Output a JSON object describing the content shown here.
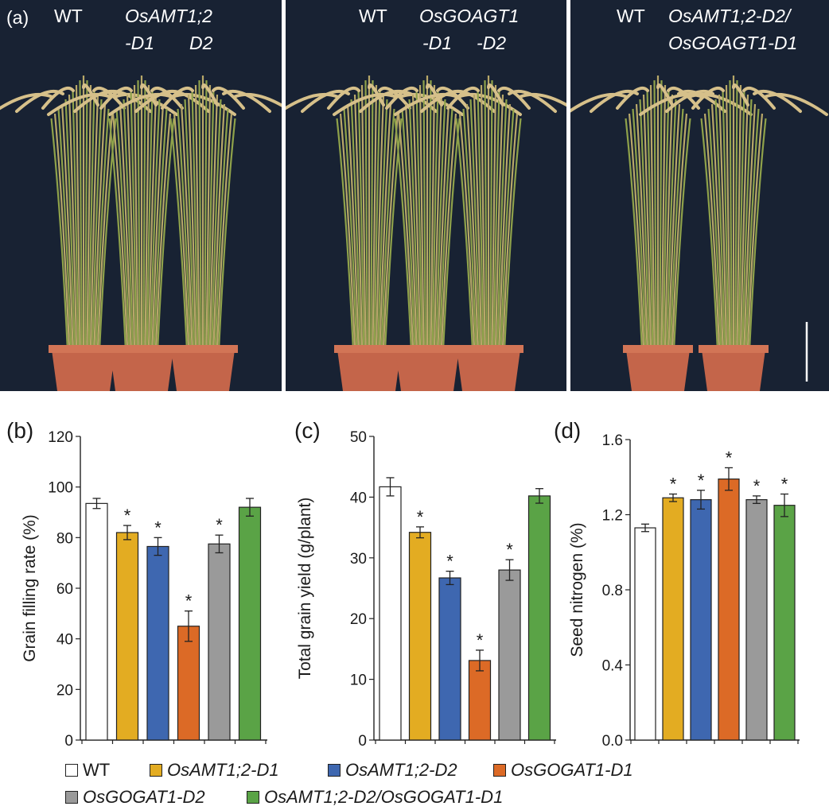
{
  "figure": {
    "panel_a_label": "(a)",
    "photos": [
      {
        "lines": [
          {
            "text": "WT",
            "italic": false
          },
          {
            "text": "OsAMT1;2",
            "italic": true
          },
          {
            "text": "-D1",
            "italic": true
          },
          {
            "text": "D2",
            "italic": true
          }
        ]
      },
      {
        "lines": [
          {
            "text": "WT",
            "italic": false
          },
          {
            "text": "OsGOAGT1",
            "italic": true
          },
          {
            "text": "-D1",
            "italic": true
          },
          {
            "text": "-D2",
            "italic": true
          }
        ]
      },
      {
        "lines": [
          {
            "text": "WT",
            "italic": false
          },
          {
            "text": "OsAMT1;2-D2/",
            "italic": true
          },
          {
            "text": "OsGOAGT1-D1",
            "italic": true
          }
        ]
      }
    ],
    "colors": {
      "photo_bg": "#182233",
      "pot": "#c4654a",
      "straw": "#b8a869",
      "leaf": "#8fa24a"
    }
  },
  "chart_data": [
    {
      "type": "bar",
      "panel_label": "(b)",
      "ylabel": "Grain filling rate (%)",
      "ylim": [
        0,
        120
      ],
      "yticks": [
        0,
        20,
        40,
        60,
        80,
        100,
        120
      ],
      "ytick_labels": [
        "0",
        "20",
        "40",
        "60",
        "80",
        "100",
        "120"
      ],
      "categories": [
        "WT",
        "OsAMT1;2-D1",
        "OsAMT1;2-D2",
        "OsGOGAT1-D1",
        "OsGOGAT1-D2",
        "OsAMT1;2-D2/OsGOGAT1-D1"
      ],
      "values": [
        93.5,
        82,
        76.5,
        45,
        77.5,
        92
      ],
      "errors": [
        2,
        2.8,
        3.5,
        6,
        3.5,
        3.5
      ],
      "significance": [
        "",
        "*",
        "*",
        "*",
        "*",
        ""
      ]
    },
    {
      "type": "bar",
      "panel_label": "(c)",
      "ylabel": "Total grain yield (g/plant)",
      "ylim": [
        0,
        50
      ],
      "yticks": [
        0,
        10,
        20,
        30,
        40,
        50
      ],
      "ytick_labels": [
        "0",
        "10",
        "20",
        "30",
        "40",
        "50"
      ],
      "categories": [
        "WT",
        "OsAMT1;2-D1",
        "OsAMT1;2-D2",
        "OsGOGAT1-D1",
        "OsGOGAT1-D2",
        "OsAMT1;2-D2/OsGOGAT1-D1"
      ],
      "values": [
        41.7,
        34.2,
        26.7,
        13.1,
        28,
        40.2
      ],
      "errors": [
        1.5,
        0.9,
        1.1,
        1.7,
        1.7,
        1.2
      ],
      "significance": [
        "",
        "*",
        "*",
        "*",
        "*",
        ""
      ]
    },
    {
      "type": "bar",
      "panel_label": "(d)",
      "ylabel": "Seed nitrogen (%)",
      "ylim": [
        0,
        1.6
      ],
      "yticks": [
        0,
        0.4,
        0.8,
        1.2,
        1.6
      ],
      "ytick_labels": [
        "0.0",
        "0.4",
        "0.8",
        "1.2",
        "1.6"
      ],
      "categories": [
        "WT",
        "OsAMT1;2-D1",
        "OsAMT1;2-D2",
        "OsGOGAT1-D1",
        "OsGOGAT1-D2",
        "OsAMT1;2-D2/OsGOGAT1-D1"
      ],
      "values": [
        1.13,
        1.29,
        1.28,
        1.39,
        1.28,
        1.25
      ],
      "errors": [
        0.02,
        0.02,
        0.05,
        0.06,
        0.02,
        0.06
      ],
      "significance": [
        "",
        "*",
        "*",
        "*",
        "*",
        "*"
      ]
    }
  ],
  "series_colors": [
    "#ffffff",
    "#e3ac22",
    "#3e67b0",
    "#dc6a26",
    "#9a9a9a",
    "#5aa346"
  ],
  "legend": {
    "items": [
      {
        "label": "WT",
        "color": "#ffffff"
      },
      {
        "label": "OsAMT1;2-D1",
        "color": "#e3ac22"
      },
      {
        "label": "OsAMT1;2-D2",
        "color": "#3e67b0"
      },
      {
        "label": "OsGOGAT1-D1",
        "color": "#dc6a26"
      },
      {
        "label": "OsGOGAT1-D2",
        "color": "#9a9a9a"
      },
      {
        "label": "OsAMT1;2-D2/OsGOGAT1-D1",
        "color": "#5aa346"
      }
    ]
  }
}
